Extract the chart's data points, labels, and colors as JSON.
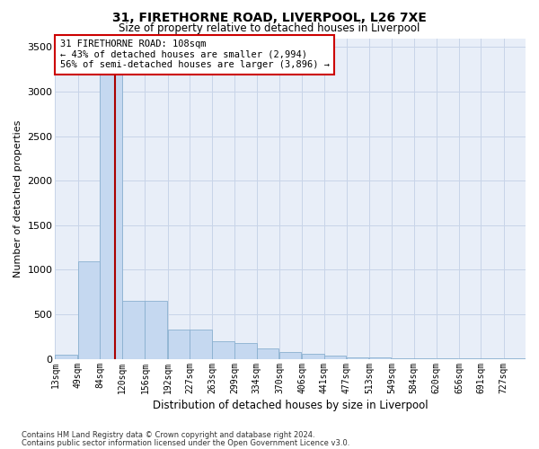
{
  "title1": "31, FIRETHORNE ROAD, LIVERPOOL, L26 7XE",
  "title2": "Size of property relative to detached houses in Liverpool",
  "xlabel": "Distribution of detached houses by size in Liverpool",
  "ylabel": "Number of detached properties",
  "footnote1": "Contains HM Land Registry data © Crown copyright and database right 2024.",
  "footnote2": "Contains public sector information licensed under the Open Government Licence v3.0.",
  "annotation_line1": "31 FIRETHORNE ROAD: 108sqm",
  "annotation_line2": "← 43% of detached houses are smaller (2,994)",
  "annotation_line3": "56% of semi-detached houses are larger (3,896) →",
  "property_size": 108,
  "bar_color": "#c5d8f0",
  "bar_edge_color": "#8ab0d0",
  "marker_color": "#aa0000",
  "grid_color": "#c8d4e8",
  "bg_color": "#e8eef8",
  "categories": [
    "13sqm",
    "49sqm",
    "84sqm",
    "120sqm",
    "156sqm",
    "192sqm",
    "227sqm",
    "263sqm",
    "299sqm",
    "334sqm",
    "370sqm",
    "406sqm",
    "441sqm",
    "477sqm",
    "513sqm",
    "549sqm",
    "584sqm",
    "620sqm",
    "656sqm",
    "691sqm",
    "727sqm"
  ],
  "bin_starts": [
    13,
    49,
    84,
    120,
    156,
    192,
    227,
    263,
    299,
    334,
    370,
    406,
    441,
    477,
    513,
    549,
    584,
    620,
    656,
    691,
    727
  ],
  "bin_width": 35,
  "values": [
    50,
    1090,
    3380,
    650,
    650,
    325,
    330,
    195,
    175,
    120,
    80,
    55,
    35,
    20,
    12,
    8,
    5,
    3,
    2,
    2,
    1
  ],
  "ylim": [
    0,
    3600
  ],
  "yticks": [
    0,
    500,
    1000,
    1500,
    2000,
    2500,
    3000,
    3500
  ],
  "annotation_box_color": "white",
  "annotation_box_edge_color": "#cc0000"
}
